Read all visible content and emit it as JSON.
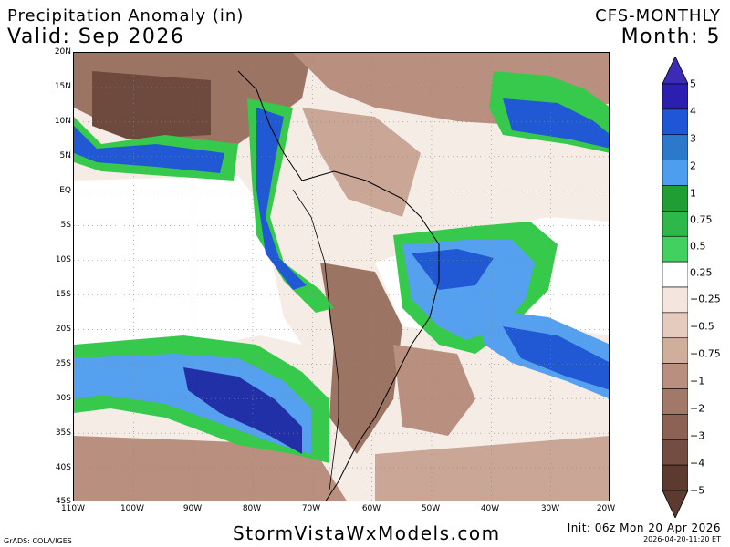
{
  "header": {
    "title": "Precipitation Anomaly (in)",
    "valid": "Valid: Sep 2026",
    "model": "CFS-MONTHLY",
    "month": "Month: 5"
  },
  "map": {
    "lat_labels": [
      "20N",
      "15N",
      "10N",
      "5N",
      "EQ",
      "5S",
      "10S",
      "15S",
      "20S",
      "25S",
      "30S",
      "35S",
      "40S",
      "45S"
    ],
    "lon_labels": [
      "110W",
      "100W",
      "90W",
      "80W",
      "70W",
      "60W",
      "50W",
      "40W",
      "30W",
      "20W"
    ],
    "colors": {
      "dry_dark": "#6e4a3e",
      "dry_mid": "#9c7464",
      "dry_light": "#c9a696",
      "dry_pale": "#f6ece6",
      "neutral": "#ffffff",
      "wet_green_light": "#36c94c",
      "wet_green": "#1ba53a",
      "wet_blue_light": "#56a0f0",
      "wet_blue": "#2159d4",
      "wet_blue_dark": "#2230a8"
    }
  },
  "colorbar": {
    "labels": [
      "5",
      "4",
      "3",
      "2",
      "1",
      "0.75",
      "0.5",
      "0.25",
      "−0.25",
      "−0.5",
      "−0.75",
      "−1",
      "−2",
      "−3",
      "−4",
      "−5"
    ],
    "colors": [
      "#2a1fb0",
      "#1f56d6",
      "#2b78cc",
      "#4e9ef0",
      "#1f9e34",
      "#2eb84a",
      "#42d15e",
      "#ffffff",
      "#f4e6de",
      "#e4cbbd",
      "#d0ae9c",
      "#b99080",
      "#a27868",
      "#8c6254",
      "#744d42",
      "#5c3a30"
    ]
  },
  "footer": {
    "site": "StormVistaWxModels.com",
    "init": "Init: 06z Mon 20 Apr 2026",
    "timestamp": "2026-04-20-11:20 ET",
    "grads": "GrADS: COLA/IGES"
  }
}
